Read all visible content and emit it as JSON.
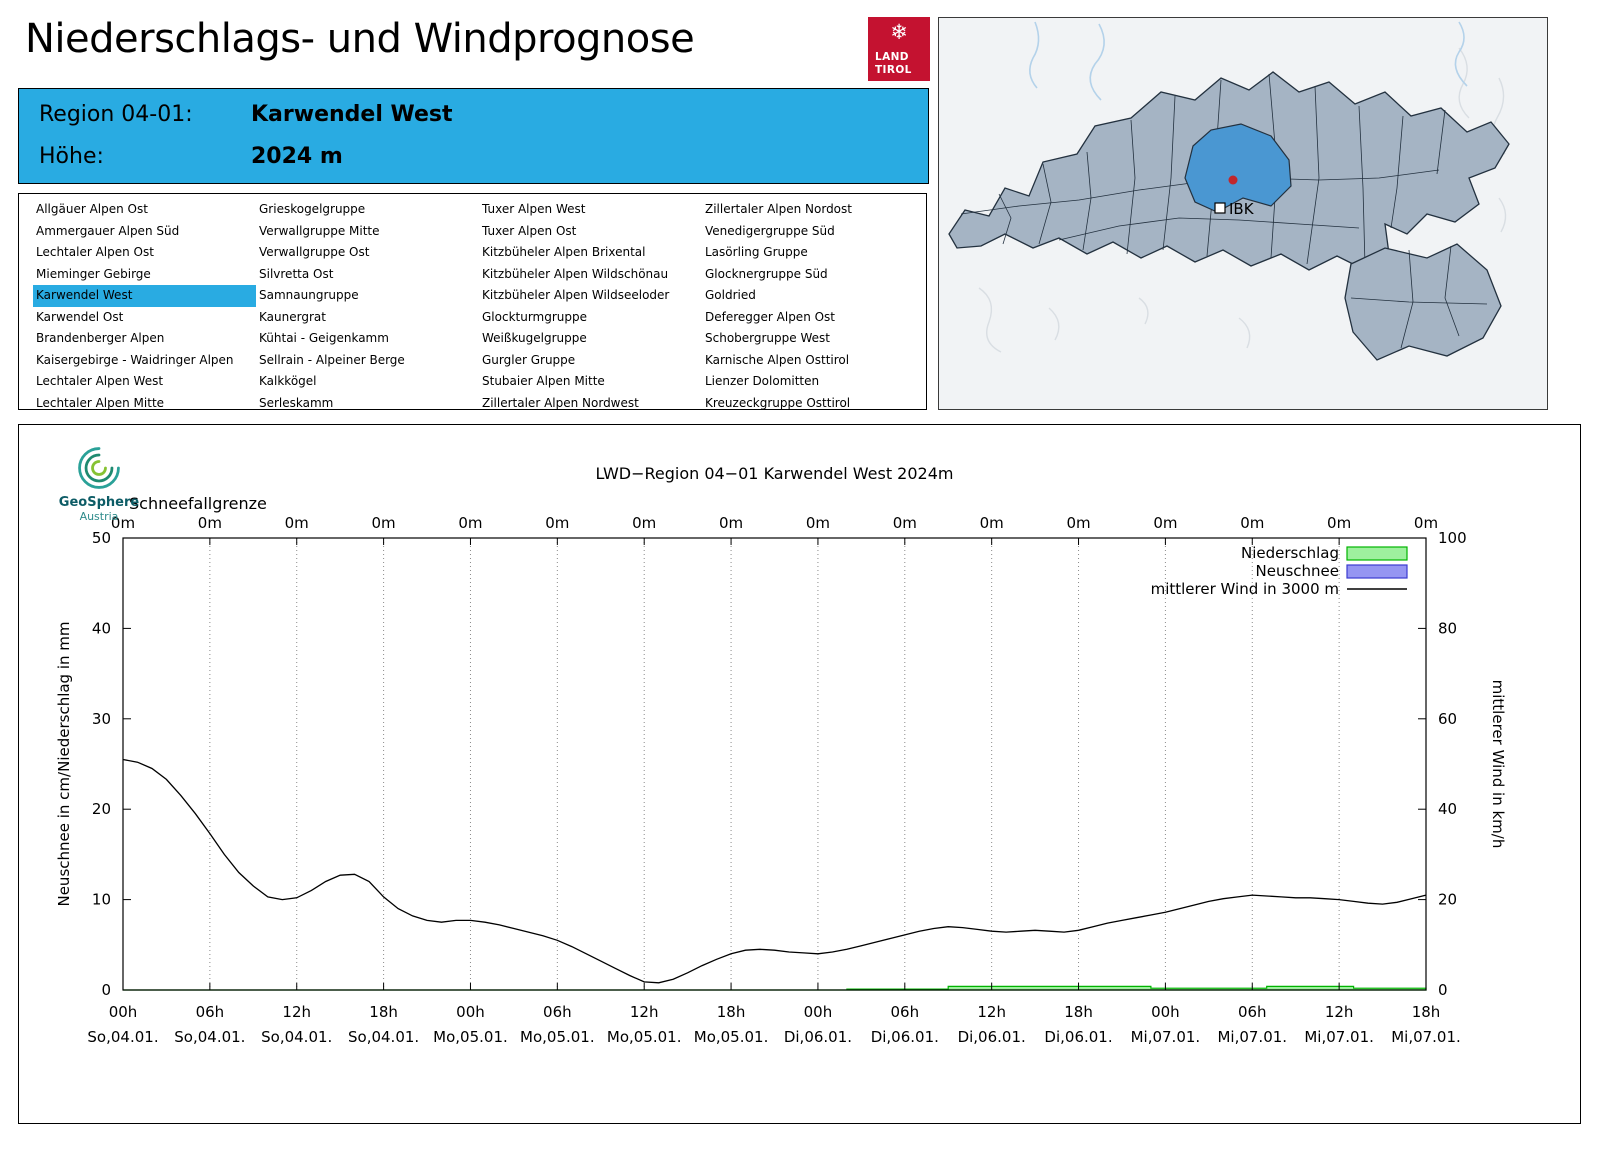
{
  "header": {
    "title": "Niederschlags- und Windprognose"
  },
  "tirol_logo": {
    "line1": "LAND",
    "line2": "TIROL",
    "snowflake": "❄",
    "brand_color": "#c41230"
  },
  "map": {
    "ibk_label": "IBK",
    "region_fill": "#a5b4c4",
    "highlight_fill": "#4a97d2"
  },
  "region_info": {
    "region_label": "Region 04-01:",
    "region_value": "Karwendel West",
    "altitude_label": "Höhe:",
    "altitude_value": "2024 m",
    "accent_color": "#29abe2"
  },
  "region_list": {
    "selected": "Karwendel West",
    "columns": [
      [
        "Allgäuer Alpen Ost",
        "Ammergauer Alpen Süd",
        "Lechtaler Alpen Ost",
        "Mieminger Gebirge",
        "Karwendel West",
        "Karwendel Ost",
        "Brandenberger Alpen",
        "Kaisergebirge - Waidringer Alpen",
        "Lechtaler Alpen West",
        "Lechtaler Alpen Mitte"
      ],
      [
        "Grieskogelgruppe",
        "Verwallgruppe Mitte",
        "Verwallgruppe Ost",
        "Silvretta Ost",
        "Samnaungruppe",
        "Kaunergrat",
        "Kühtai - Geigenkamm",
        "Sellrain - Alpeiner Berge",
        "Kalkkögel",
        "Serleskamm"
      ],
      [
        "Tuxer Alpen West",
        "Tuxer Alpen Ost",
        "Kitzbüheler Alpen Brixental",
        "Kitzbüheler Alpen Wildschönau",
        "Kitzbüheler Alpen Wildseeloder",
        "Glockturmgruppe",
        "Weißkugelgruppe",
        "Gurgler Gruppe",
        "Stubaier Alpen Mitte",
        "Zillertaler Alpen Nordwest"
      ],
      [
        "Zillertaler Alpen Nordost",
        "Venedigergruppe Süd",
        "Lasörling Gruppe",
        "Glocknergruppe Süd",
        "Goldried",
        "Deferegger Alpen Ost",
        "Schobergruppe West",
        "Karnische Alpen Osttirol",
        "Lienzer Dolomitten",
        "Kreuzeckgruppe Osttirol"
      ]
    ]
  },
  "geosphere_logo": {
    "name": "GeoSphere",
    "sub": "Austria"
  },
  "chart_data": {
    "type": "line",
    "title": "LWD−Region 04−01 Karwendel West 2024m",
    "snowline_label": "Schneefallgrenze",
    "snowline_values": [
      "0m",
      "0m",
      "0m",
      "0m",
      "0m",
      "0m",
      "0m",
      "0m",
      "0m",
      "0m",
      "0m",
      "0m",
      "0m",
      "0m",
      "0m",
      "0m"
    ],
    "ylabel_left": "Neuschnee in cm/Niederschlag in mm",
    "ylabel_right": "mittlerer Wind in km/h",
    "ylim_left": [
      0,
      50
    ],
    "ylim_right": [
      0,
      100
    ],
    "yticks_left": [
      0,
      10,
      20,
      30,
      40,
      50
    ],
    "yticks_right": [
      0,
      20,
      40,
      60,
      80,
      100
    ],
    "x_ticks": [
      {
        "time": "00h",
        "date": "So,04.01."
      },
      {
        "time": "06h",
        "date": "So,04.01."
      },
      {
        "time": "12h",
        "date": "So,04.01."
      },
      {
        "time": "18h",
        "date": "So,04.01."
      },
      {
        "time": "00h",
        "date": "Mo,05.01."
      },
      {
        "time": "06h",
        "date": "Mo,05.01."
      },
      {
        "time": "12h",
        "date": "Mo,05.01."
      },
      {
        "time": "18h",
        "date": "Mo,05.01."
      },
      {
        "time": "00h",
        "date": "Di,06.01."
      },
      {
        "time": "06h",
        "date": "Di,06.01."
      },
      {
        "time": "12h",
        "date": "Di,06.01."
      },
      {
        "time": "18h",
        "date": "Di,06.01."
      },
      {
        "time": "00h",
        "date": "Mi,07.01."
      },
      {
        "time": "06h",
        "date": "Mi,07.01."
      },
      {
        "time": "12h",
        "date": "Mi,07.01."
      },
      {
        "time": "18h",
        "date": "Mi,07.01."
      }
    ],
    "legend": [
      {
        "label": "Niederschlag",
        "type": "box",
        "fill": "#9ef09e",
        "stroke": "#00b400"
      },
      {
        "label": "Neuschnee",
        "type": "box",
        "fill": "#9595f2",
        "stroke": "#3b3bd0"
      },
      {
        "label": "mittlerer Wind in 3000 m",
        "type": "line",
        "stroke": "#000000"
      }
    ],
    "hours_start": 0,
    "hours_end": 90,
    "wind_kmh": [
      51.0,
      50.4,
      49.0,
      46.6,
      43.0,
      39.0,
      34.6,
      30.0,
      26.0,
      23.0,
      20.6,
      20.0,
      20.4,
      22.0,
      24.0,
      25.4,
      25.6,
      24.0,
      20.6,
      18.0,
      16.4,
      15.4,
      15.0,
      15.4,
      15.4,
      15.0,
      14.4,
      13.6,
      12.8,
      12.0,
      11.0,
      9.6,
      8.0,
      6.4,
      4.8,
      3.2,
      1.8,
      1.6,
      2.4,
      3.8,
      5.4,
      6.8,
      8.0,
      8.8,
      9.0,
      8.8,
      8.4,
      8.2,
      8.0,
      8.4,
      9.0,
      9.8,
      10.6,
      11.4,
      12.2,
      13.0,
      13.6,
      14.0,
      13.8,
      13.4,
      13.0,
      12.8,
      13.0,
      13.2,
      13.0,
      12.8,
      13.2,
      14.0,
      14.8,
      15.4,
      16.0,
      16.6,
      17.2,
      18.0,
      18.8,
      19.6,
      20.2,
      20.6,
      21.0,
      20.8,
      20.6,
      20.4,
      20.4,
      20.2,
      20.0,
      19.6,
      19.2,
      19.0,
      19.4,
      20.2,
      21.0
    ],
    "niederschlag_mm": [
      0,
      0,
      0,
      0,
      0,
      0,
      0,
      0,
      0,
      0,
      0,
      0,
      0,
      0,
      0,
      0,
      0,
      0,
      0,
      0,
      0,
      0,
      0,
      0,
      0,
      0,
      0,
      0,
      0,
      0,
      0,
      0,
      0,
      0,
      0,
      0,
      0,
      0,
      0,
      0,
      0,
      0,
      0,
      0,
      0,
      0,
      0,
      0,
      0,
      0,
      0.1,
      0.1,
      0.1,
      0.1,
      0.1,
      0.1,
      0.1,
      0.4,
      0.4,
      0.4,
      0.4,
      0.4,
      0.4,
      0.4,
      0.4,
      0.4,
      0.4,
      0.4,
      0.4,
      0.4,
      0.4,
      0.2,
      0.2,
      0.2,
      0.2,
      0.2,
      0.2,
      0.2,
      0.2,
      0.4,
      0.4,
      0.4,
      0.4,
      0.4,
      0.4,
      0.2,
      0.2,
      0.2,
      0.2,
      0.2,
      0.2
    ],
    "neuschnee_cm_constant": 0
  }
}
